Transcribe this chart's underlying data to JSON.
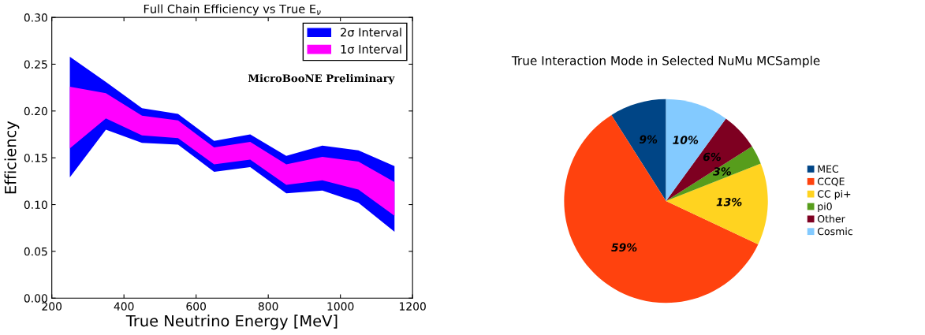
{
  "chart_data": [
    {
      "type": "area",
      "title": "Full Chain Efficiency vs True E$_{ν}$",
      "xlabel": "True Neutrino Energy [MeV]",
      "ylabel": "Efficiency",
      "x": [
        250,
        350,
        450,
        550,
        650,
        750,
        850,
        950,
        1050,
        1150
      ],
      "series": [
        {
          "name": "2σ Interval",
          "color": "#0000ff",
          "values": [
            null,
            null,
            null,
            null,
            null,
            null,
            null,
            null,
            null,
            null
          ],
          "lower": [
            0.129,
            0.18,
            0.166,
            0.164,
            0.135,
            0.14,
            0.112,
            0.115,
            0.102,
            0.071
          ],
          "upper": [
            0.258,
            0.231,
            0.203,
            0.197,
            0.168,
            0.175,
            0.152,
            0.163,
            0.158,
            0.141
          ]
        },
        {
          "name": "1σ Interval",
          "color": "#ff00ff",
          "values": [
            null,
            null,
            null,
            null,
            null,
            null,
            null,
            null,
            null,
            null
          ],
          "lower": [
            0.16,
            0.192,
            0.174,
            0.171,
            0.143,
            0.148,
            0.121,
            0.126,
            0.116,
            0.088
          ],
          "upper": [
            0.226,
            0.219,
            0.195,
            0.19,
            0.161,
            0.167,
            0.143,
            0.151,
            0.146,
            0.124
          ]
        }
      ],
      "xlim": [
        200,
        1200
      ],
      "xticks": [
        200,
        400,
        600,
        800,
        1000,
        1200
      ],
      "ylim": [
        0,
        0.3
      ],
      "yticks": [
        {
          "value": 0,
          "label": "0.00"
        },
        {
          "value": 0.05,
          "label": "0.05"
        },
        {
          "value": 0.1,
          "label": "0.10"
        },
        {
          "value": 0.15,
          "label": "0.15"
        },
        {
          "value": 0.2,
          "label": "0.20"
        },
        {
          "value": 0.25,
          "label": "0.25"
        },
        {
          "value": 0.3,
          "label": "0.30"
        }
      ],
      "annotations": [
        "MicroBooNE Preliminary"
      ],
      "legend": "top right",
      "grid": false
    },
    {
      "type": "pie",
      "title": "True Interaction Mode in Selected NuMu MCSample",
      "categories": [
        "MEC",
        "CCQE",
        "CC pi+",
        "pi0",
        "Other",
        "Cosmic"
      ],
      "values": [
        9,
        59,
        13,
        3,
        6,
        10
      ],
      "colors": [
        "#004586",
        "#ff420e",
        "#ffd320",
        "#579d1c",
        "#7e0021",
        "#83caff"
      ],
      "value_labels": [
        "9%",
        "59%",
        "13%",
        "3%",
        "6%",
        "10%"
      ],
      "legend": "right"
    }
  ]
}
